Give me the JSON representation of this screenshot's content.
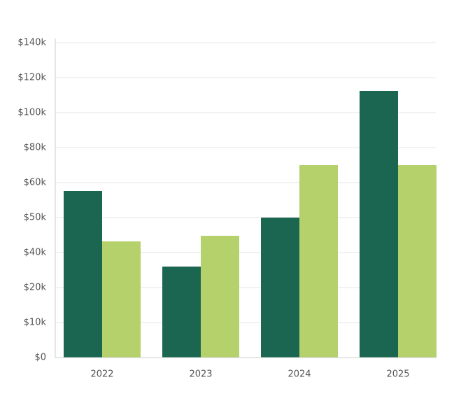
{
  "chart_data": {
    "type": "bar",
    "categories": [
      "2022",
      "2023",
      "2024",
      "2025"
    ],
    "series": [
      {
        "color": "#1a6650",
        "values": [
          57600,
          32000,
          50000,
          112400
        ]
      },
      {
        "color": "#b5d16b",
        "values": [
          43200,
          44800,
          70000,
          70000
        ]
      }
    ],
    "ylim": [
      0,
      140000
    ],
    "yticks": [
      {
        "value": 0,
        "label": "$0"
      },
      {
        "value": 10000,
        "label": "$10k"
      },
      {
        "value": 20000,
        "label": "$20k"
      },
      {
        "value": 40000,
        "label": "$40k"
      },
      {
        "value": 50000,
        "label": "$50k"
      },
      {
        "value": 60000,
        "label": "$60k"
      },
      {
        "value": 80000,
        "label": "$80k"
      },
      {
        "value": 100000,
        "label": "$100k"
      },
      {
        "value": 120000,
        "label": "$120k"
      },
      {
        "value": 140000,
        "label": "$140k"
      }
    ],
    "grid": true
  }
}
